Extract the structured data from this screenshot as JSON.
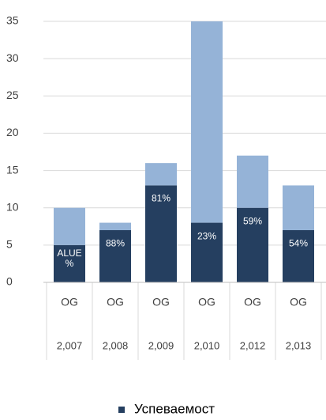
{
  "chart_data": {
    "type": "stacked_bar",
    "categories": [
      "2,007",
      "2,008",
      "2,009",
      "2,010",
      "2,012",
      "2,013"
    ],
    "category_labels": [
      "OG",
      "OG",
      "OG",
      "OG",
      "OG",
      "OG"
    ],
    "series": [
      {
        "name": "Успеваемост",
        "color": "#253f60",
        "values": [
          5,
          7,
          13,
          8,
          10,
          7
        ],
        "bar_labels": [
          "ALUE\n%",
          "88%",
          "81%",
          "23%",
          "59%",
          "54%"
        ]
      },
      {
        "color": "#95b3d7",
        "values": [
          5,
          1,
          3,
          27,
          7,
          6
        ]
      }
    ],
    "ylim": [
      0,
      35
    ],
    "yticks": [
      0,
      5,
      10,
      15,
      20,
      25,
      30,
      35
    ],
    "grid": true
  }
}
